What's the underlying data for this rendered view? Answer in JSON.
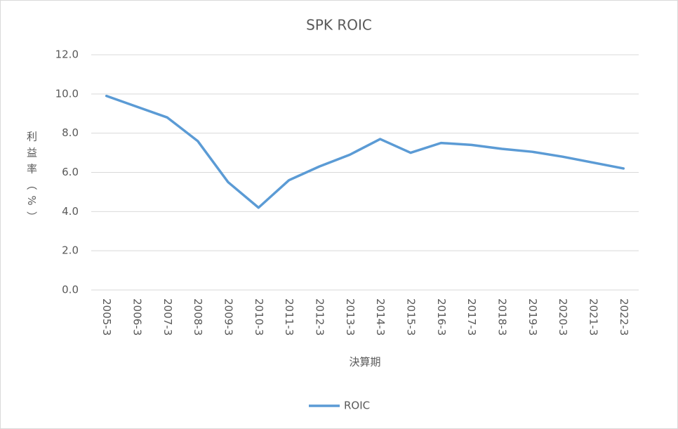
{
  "chart_data": {
    "type": "line",
    "title": "SPK ROIC",
    "y_label": "利益率（%）",
    "x_label": "決算期",
    "categories": [
      "2005-3",
      "2006-3",
      "2007-3",
      "2008-3",
      "2009-3",
      "2010-3",
      "2011-3",
      "2012-3",
      "2013-3",
      "2014-3",
      "2015-3",
      "2016-3",
      "2017-3",
      "2018-3",
      "2019-3",
      "2020-3",
      "2021-3",
      "2022-3"
    ],
    "series": [
      {
        "name": "ROIC",
        "color": "#5b9bd5",
        "values": [
          9.9,
          9.35,
          8.8,
          7.6,
          5.5,
          4.2,
          5.6,
          6.3,
          6.9,
          7.7,
          7.0,
          7.5,
          7.4,
          7.2,
          7.05,
          6.8,
          6.5,
          6.2
        ]
      }
    ],
    "ylim": [
      0,
      12
    ],
    "yticks": [
      {
        "value": 0,
        "label": "0.0"
      },
      {
        "value": 2,
        "label": "2.0"
      },
      {
        "value": 4,
        "label": "4.0"
      },
      {
        "value": 6,
        "label": "6.0"
      },
      {
        "value": 8,
        "label": "8.0"
      },
      {
        "value": 10,
        "label": "10.0"
      },
      {
        "value": 12,
        "label": "12.0"
      }
    ],
    "grid": true,
    "legend": "bottom"
  }
}
